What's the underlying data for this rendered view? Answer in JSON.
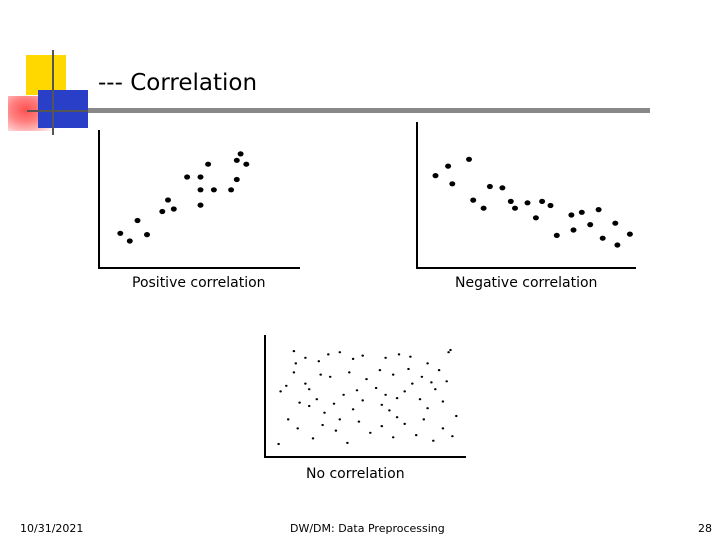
{
  "slide": {
    "title": "--- Correlation",
    "footer": {
      "date": "10/31/2021",
      "center": "DW/DM: Data Preprocessing",
      "page": "28"
    }
  },
  "chart_data": [
    {
      "type": "scatter",
      "caption": "Positive correlation",
      "axes_color": "#000000",
      "points": [
        [
          0.08,
          0.24
        ],
        [
          0.13,
          0.18
        ],
        [
          0.17,
          0.34
        ],
        [
          0.22,
          0.23
        ],
        [
          0.3,
          0.41
        ],
        [
          0.33,
          0.5
        ],
        [
          0.36,
          0.43
        ],
        [
          0.43,
          0.68
        ],
        [
          0.5,
          0.46
        ],
        [
          0.5,
          0.58
        ],
        [
          0.5,
          0.68
        ],
        [
          0.54,
          0.78
        ],
        [
          0.57,
          0.58
        ],
        [
          0.66,
          0.58
        ],
        [
          0.69,
          0.81
        ],
        [
          0.71,
          0.86
        ],
        [
          0.69,
          0.66
        ],
        [
          0.74,
          0.78
        ]
      ]
    },
    {
      "type": "scatter",
      "caption": "Negative correlation",
      "axes_color": "#000000",
      "points": [
        [
          0.06,
          0.65
        ],
        [
          0.14,
          0.59
        ],
        [
          0.12,
          0.72
        ],
        [
          0.22,
          0.77
        ],
        [
          0.24,
          0.47
        ],
        [
          0.29,
          0.41
        ],
        [
          0.32,
          0.57
        ],
        [
          0.38,
          0.56
        ],
        [
          0.42,
          0.46
        ],
        [
          0.44,
          0.41
        ],
        [
          0.5,
          0.45
        ],
        [
          0.54,
          0.34
        ],
        [
          0.57,
          0.46
        ],
        [
          0.61,
          0.43
        ],
        [
          0.64,
          0.21
        ],
        [
          0.71,
          0.36
        ],
        [
          0.72,
          0.25
        ],
        [
          0.76,
          0.38
        ],
        [
          0.8,
          0.29
        ],
        [
          0.84,
          0.4
        ],
        [
          0.86,
          0.19
        ],
        [
          0.92,
          0.3
        ],
        [
          0.93,
          0.14
        ],
        [
          0.99,
          0.22
        ]
      ]
    },
    {
      "type": "scatter",
      "caption": "No correlation",
      "axes_color": "#000000",
      "points": [
        [
          0.12,
          0.91
        ],
        [
          0.13,
          0.8
        ],
        [
          0.18,
          0.85
        ],
        [
          0.25,
          0.82
        ],
        [
          0.3,
          0.88
        ],
        [
          0.36,
          0.9
        ],
        [
          0.43,
          0.84
        ],
        [
          0.48,
          0.87
        ],
        [
          0.6,
          0.85
        ],
        [
          0.67,
          0.88
        ],
        [
          0.73,
          0.86
        ],
        [
          0.82,
          0.8
        ],
        [
          0.93,
          0.9
        ],
        [
          0.94,
          0.92
        ],
        [
          0.05,
          0.55
        ],
        [
          0.08,
          0.6
        ],
        [
          0.15,
          0.45
        ],
        [
          0.18,
          0.62
        ],
        [
          0.2,
          0.42
        ],
        [
          0.24,
          0.48
        ],
        [
          0.28,
          0.36
        ],
        [
          0.33,
          0.44
        ],
        [
          0.38,
          0.52
        ],
        [
          0.43,
          0.39
        ],
        [
          0.48,
          0.47
        ],
        [
          0.55,
          0.58
        ],
        [
          0.58,
          0.43
        ],
        [
          0.62,
          0.38
        ],
        [
          0.66,
          0.49
        ],
        [
          0.7,
          0.55
        ],
        [
          0.74,
          0.62
        ],
        [
          0.78,
          0.48
        ],
        [
          0.82,
          0.4
        ],
        [
          0.86,
          0.57
        ],
        [
          0.9,
          0.46
        ],
        [
          0.09,
          0.3
        ],
        [
          0.14,
          0.22
        ],
        [
          0.22,
          0.13
        ],
        [
          0.27,
          0.25
        ],
        [
          0.34,
          0.2
        ],
        [
          0.4,
          0.09
        ],
        [
          0.46,
          0.28
        ],
        [
          0.52,
          0.18
        ],
        [
          0.58,
          0.24
        ],
        [
          0.64,
          0.14
        ],
        [
          0.7,
          0.26
        ],
        [
          0.76,
          0.16
        ],
        [
          0.8,
          0.3
        ],
        [
          0.85,
          0.11
        ],
        [
          0.9,
          0.22
        ],
        [
          0.95,
          0.15
        ],
        [
          0.97,
          0.33
        ],
        [
          0.04,
          0.08
        ],
        [
          0.12,
          0.72
        ],
        [
          0.31,
          0.68
        ],
        [
          0.41,
          0.72
        ],
        [
          0.5,
          0.66
        ],
        [
          0.57,
          0.74
        ],
        [
          0.64,
          0.7
        ],
        [
          0.72,
          0.75
        ],
        [
          0.79,
          0.68
        ],
        [
          0.88,
          0.74
        ],
        [
          0.2,
          0.57
        ],
        [
          0.6,
          0.52
        ],
        [
          0.92,
          0.64
        ],
        [
          0.36,
          0.3
        ],
        [
          0.66,
          0.32
        ],
        [
          0.45,
          0.56
        ],
        [
          0.26,
          0.7
        ],
        [
          0.84,
          0.63
        ]
      ]
    }
  ]
}
